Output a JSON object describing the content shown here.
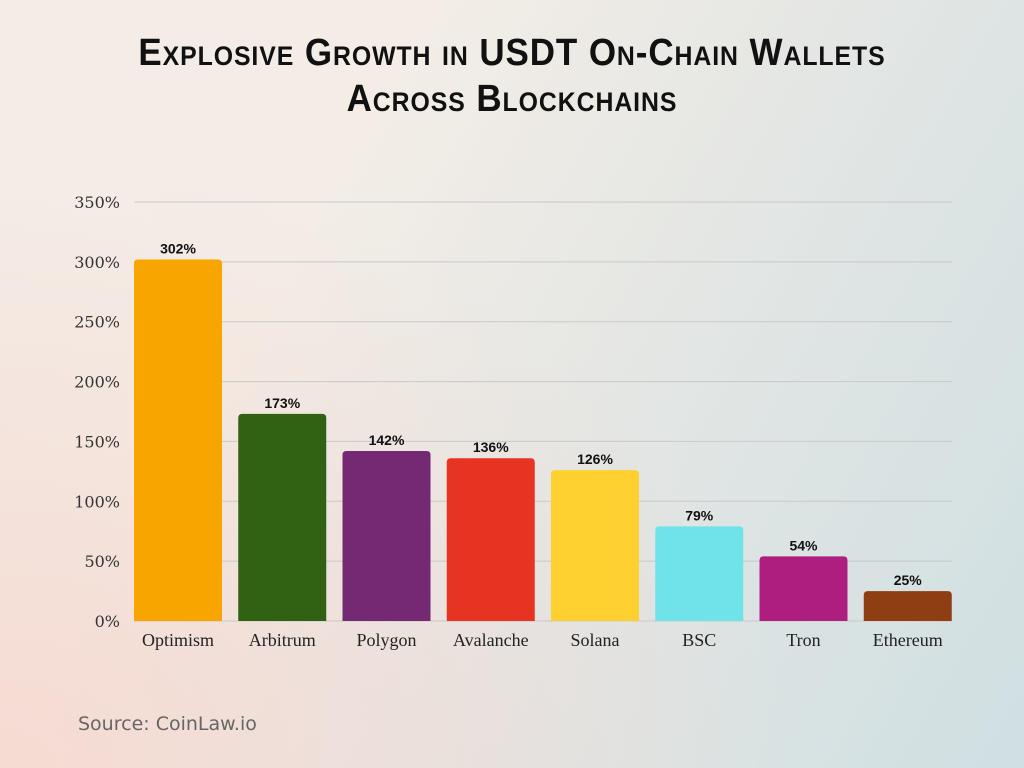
{
  "chart_data": {
    "type": "bar",
    "title": "Explosive Growth in USDT On-Chain Wallets Across Blockchains",
    "title_lines": [
      "Explosive Growth in USDT On-Chain Wallets",
      "Across Blockchains"
    ],
    "categories": [
      "Optimism",
      "Arbitrum",
      "Polygon",
      "Avalanche",
      "Solana",
      "BSC",
      "Tron",
      "Ethereum"
    ],
    "values": [
      302,
      173,
      142,
      136,
      126,
      79,
      54,
      25
    ],
    "data_labels": [
      "302%",
      "173%",
      "142%",
      "136%",
      "126%",
      "79%",
      "54%",
      "25%"
    ],
    "colors": [
      "#f8a500",
      "#316211",
      "#742a72",
      "#e73322",
      "#fed130",
      "#6fe4e8",
      "#ad1e7e",
      "#8f3e14"
    ],
    "ylim": [
      0,
      350
    ],
    "yticks": [
      0,
      50,
      100,
      150,
      200,
      250,
      300,
      350
    ],
    "ytick_labels": [
      "0%",
      "50%",
      "100%",
      "150%",
      "200%",
      "250%",
      "300%",
      "350%"
    ],
    "xlabel": "",
    "ylabel": "",
    "grid": true,
    "legend": "none"
  },
  "source": "Source: CoinLaw.io"
}
